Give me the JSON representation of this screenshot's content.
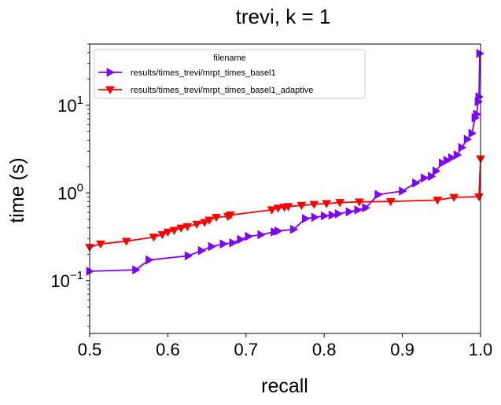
{
  "chart_data": {
    "type": "line",
    "title": "trevi, k = 1",
    "xlabel": "recall",
    "ylabel": "time (s)",
    "xlim": [
      0.5,
      1.0
    ],
    "ylim": [
      0.025,
      50
    ],
    "yscale": "log",
    "x_ticks": [
      {
        "value": 0.5,
        "label": "0.5"
      },
      {
        "value": 0.6,
        "label": "0.6"
      },
      {
        "value": 0.7,
        "label": "0.7"
      },
      {
        "value": 0.8,
        "label": "0.8"
      },
      {
        "value": 0.9,
        "label": "0.9"
      },
      {
        "value": 1.0,
        "label": "1.0"
      }
    ],
    "y_ticks": [
      {
        "value": 0.1,
        "base": "10",
        "exp": "−1"
      },
      {
        "value": 1,
        "base": "10",
        "exp": "0"
      },
      {
        "value": 10,
        "base": "10",
        "exp": "1"
      }
    ],
    "grid": false,
    "legend": {
      "title": "filename",
      "position": "top-left"
    },
    "series": [
      {
        "name": "results/times_trevi/mrpt_times_basel1",
        "color": "#7f00ff",
        "marker": "triangle-right",
        "points": [
          [
            0.5,
            0.128
          ],
          [
            0.559,
            0.133
          ],
          [
            0.576,
            0.172
          ],
          [
            0.626,
            0.192
          ],
          [
            0.643,
            0.22
          ],
          [
            0.656,
            0.245
          ],
          [
            0.671,
            0.262
          ],
          [
            0.683,
            0.27
          ],
          [
            0.693,
            0.295
          ],
          [
            0.703,
            0.32
          ],
          [
            0.719,
            0.334
          ],
          [
            0.736,
            0.36
          ],
          [
            0.741,
            0.368
          ],
          [
            0.761,
            0.385
          ],
          [
            0.776,
            0.51
          ],
          [
            0.788,
            0.528
          ],
          [
            0.8,
            0.548
          ],
          [
            0.81,
            0.56
          ],
          [
            0.818,
            0.578
          ],
          [
            0.832,
            0.61
          ],
          [
            0.843,
            0.64
          ],
          [
            0.853,
            0.678
          ],
          [
            0.869,
            0.96
          ],
          [
            0.9,
            1.05
          ],
          [
            0.917,
            1.3
          ],
          [
            0.928,
            1.48
          ],
          [
            0.937,
            1.55
          ],
          [
            0.943,
            1.78
          ],
          [
            0.951,
            2.2
          ],
          [
            0.957,
            2.35
          ],
          [
            0.963,
            2.52
          ],
          [
            0.97,
            2.72
          ],
          [
            0.976,
            3.3
          ],
          [
            0.983,
            4.1
          ],
          [
            0.989,
            4.8
          ],
          [
            0.993,
            7.2
          ],
          [
            0.995,
            7.9
          ],
          [
            0.997,
            11.0
          ],
          [
            0.998,
            12.5
          ],
          [
            0.999,
            39.0
          ]
        ]
      },
      {
        "name": "results/times_trevi/mrpt_times_basel1_adaptive",
        "color": "#ff0000",
        "marker": "triangle-down",
        "points": [
          [
            0.5,
            0.24
          ],
          [
            0.514,
            0.262
          ],
          [
            0.547,
            0.282
          ],
          [
            0.582,
            0.314
          ],
          [
            0.593,
            0.335
          ],
          [
            0.6,
            0.358
          ],
          [
            0.608,
            0.375
          ],
          [
            0.617,
            0.398
          ],
          [
            0.625,
            0.414
          ],
          [
            0.637,
            0.44
          ],
          [
            0.647,
            0.462
          ],
          [
            0.653,
            0.49
          ],
          [
            0.662,
            0.528
          ],
          [
            0.677,
            0.54
          ],
          [
            0.68,
            0.56
          ],
          [
            0.733,
            0.642
          ],
          [
            0.741,
            0.672
          ],
          [
            0.749,
            0.688
          ],
          [
            0.754,
            0.7
          ],
          [
            0.771,
            0.722
          ],
          [
            0.787,
            0.742
          ],
          [
            0.803,
            0.758
          ],
          [
            0.82,
            0.778
          ],
          [
            0.845,
            0.792
          ],
          [
            0.885,
            0.8
          ],
          [
            0.945,
            0.83
          ],
          [
            0.966,
            0.89
          ],
          [
            0.998,
            0.905
          ],
          [
            1.0,
            2.45
          ]
        ]
      }
    ]
  }
}
